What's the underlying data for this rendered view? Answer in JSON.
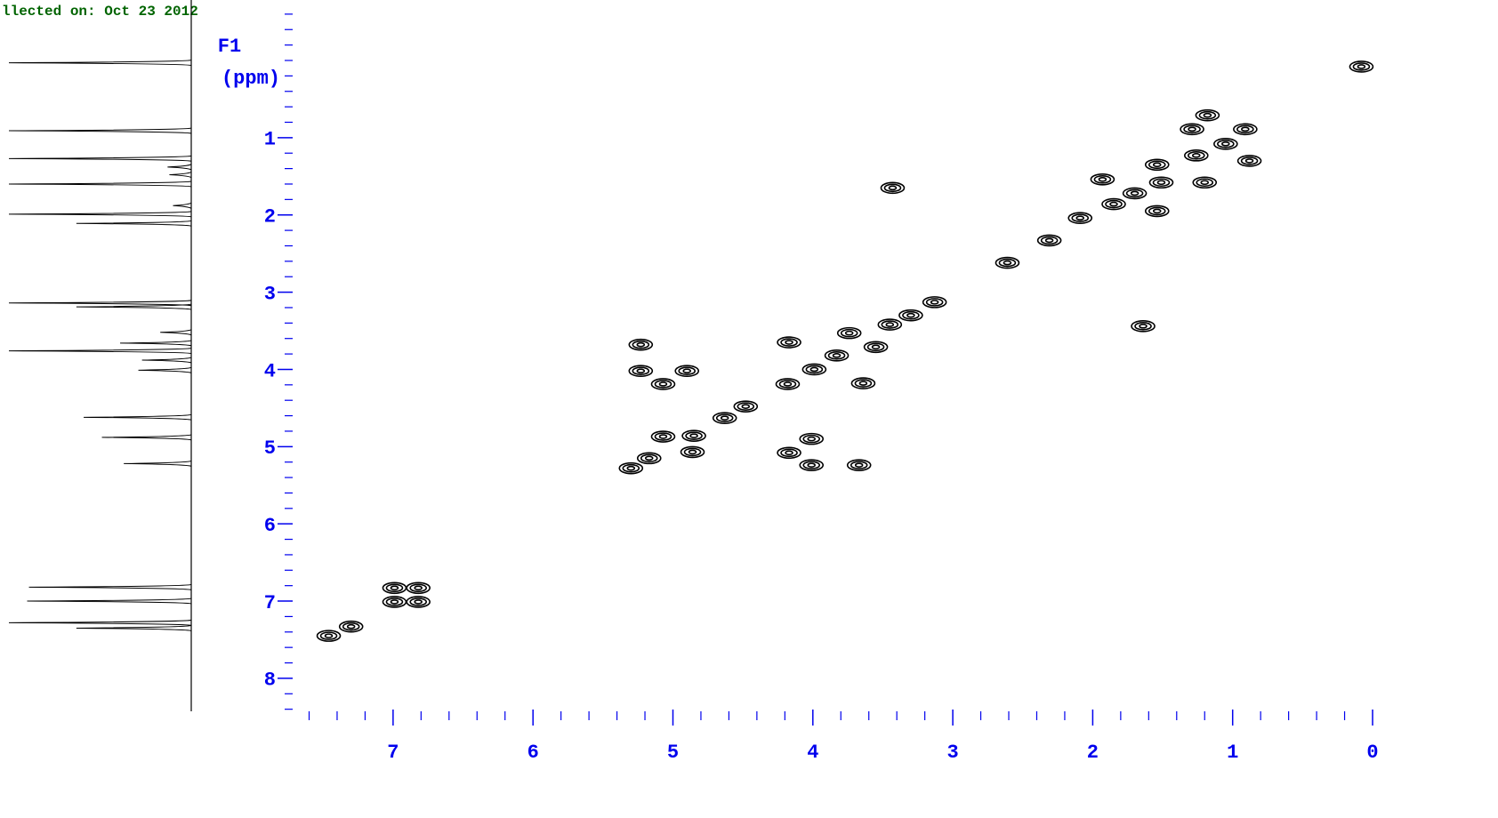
{
  "chart_data": {
    "type": "scatter",
    "title": "llected on: Oct 23 2012",
    "ylabel": [
      "F1",
      "(ppm)"
    ],
    "color": "#000000",
    "axis_color": "#0000ee",
    "title_color": "#006400",
    "xlim": [
      7.6,
      -0.15
    ],
    "ylim": [
      -0.7,
      8.45
    ],
    "xticks": [
      7,
      6,
      5,
      4,
      3,
      2,
      1,
      0
    ],
    "yticks": [
      1,
      2,
      3,
      4,
      5,
      6,
      7,
      8
    ],
    "xminorticks": [
      7.6,
      7.4,
      7.2,
      6.8,
      6.6,
      6.4,
      6.2,
      5.8,
      5.6,
      5.4,
      5.2,
      4.8,
      4.6,
      4.4,
      4.2,
      3.8,
      3.6,
      3.4,
      3.2,
      2.8,
      2.6,
      2.4,
      2.2,
      1.8,
      1.6,
      1.4,
      1.2,
      0.8,
      0.6,
      0.4,
      0.2
    ],
    "yminorticks": [
      -0.6,
      -0.4,
      -0.2,
      0,
      0.2,
      0.4,
      0.6,
      0.8,
      1.2,
      1.4,
      1.6,
      1.8,
      2.2,
      2.4,
      2.6,
      2.8,
      3.2,
      3.4,
      3.6,
      3.8,
      4.2,
      4.4,
      4.6,
      4.8,
      5.2,
      5.4,
      5.6,
      5.8,
      6.2,
      6.4,
      6.6,
      6.8,
      7.2,
      7.4,
      7.6,
      7.8,
      8.2,
      8.4
    ],
    "x": [
      0.08,
      0.91,
      1.29,
      1.18,
      1.26,
      1.54,
      1.93,
      1.51,
      1.2,
      1.54,
      2.09,
      2.31,
      0.88,
      3.43,
      2.61,
      1.64,
      3.13,
      3.45,
      3.74,
      3.55,
      3.83,
      3.99,
      4.18,
      4.17,
      3.64,
      5.23,
      5.23,
      4.9,
      5.07,
      4.63,
      4.48,
      4.85,
      5.07,
      4.86,
      5.17,
      5.3,
      4.01,
      4.17,
      4.01,
      3.67,
      6.99,
      6.82,
      6.99,
      6.82,
      7.3,
      7.46,
      1.05,
      1.7,
      1.85,
      3.3
    ],
    "values": [
      0.08,
      0.89,
      0.89,
      0.71,
      1.23,
      1.35,
      1.54,
      1.58,
      1.58,
      1.95,
      2.04,
      2.33,
      1.3,
      1.65,
      2.62,
      3.44,
      3.13,
      3.42,
      3.53,
      3.71,
      3.82,
      4.0,
      4.19,
      3.65,
      4.18,
      3.68,
      4.02,
      4.02,
      4.19,
      4.63,
      4.48,
      4.86,
      4.87,
      5.07,
      5.15,
      5.28,
      4.9,
      5.08,
      5.24,
      5.24,
      6.83,
      6.83,
      7.01,
      7.01,
      7.33,
      7.45,
      1.08,
      1.72,
      1.86,
      3.3
    ],
    "projection": {
      "ppm": [
        0.03,
        0.91,
        1.27,
        1.6,
        1.99,
        2.11,
        3.14,
        3.19,
        3.52,
        3.66,
        3.76,
        3.88,
        4.01,
        4.62,
        4.88,
        5.22,
        6.82,
        7.0,
        7.28,
        7.35,
        1.38,
        1.48,
        1.88
      ],
      "intensity": [
        1.0,
        1.0,
        1.0,
        1.0,
        1.0,
        0.63,
        1.0,
        0.63,
        0.17,
        0.39,
        1.0,
        0.27,
        0.29,
        0.59,
        0.49,
        0.37,
        0.89,
        0.9,
        1.0,
        0.63,
        0.13,
        0.12,
        0.1
      ]
    }
  }
}
